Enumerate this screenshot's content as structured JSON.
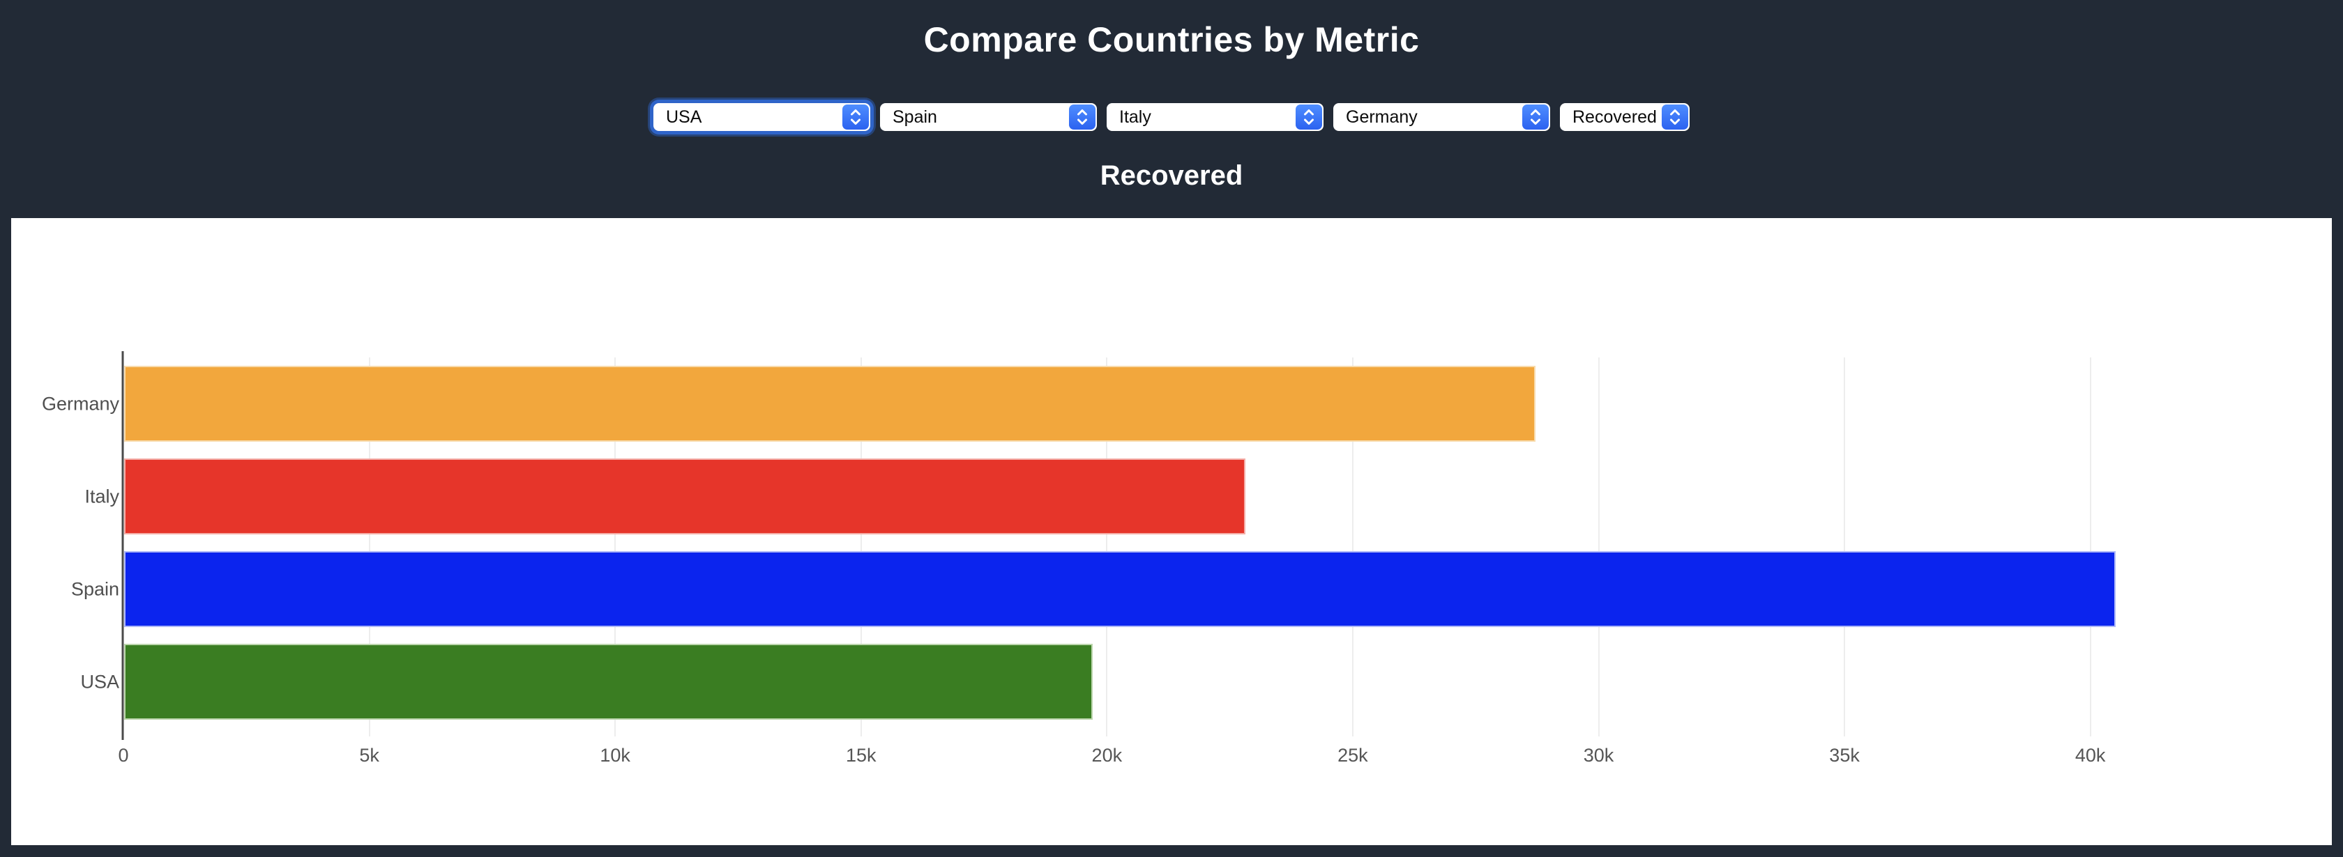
{
  "header": {
    "title": "Compare Countries by Metric",
    "subtitle": "Recovered"
  },
  "controls": {
    "selects": [
      {
        "value": "USA",
        "focused": true
      },
      {
        "value": "Spain",
        "focused": false
      },
      {
        "value": "Italy",
        "focused": false
      },
      {
        "value": "Germany",
        "focused": false
      },
      {
        "value": "Recovered",
        "focused": false
      }
    ]
  },
  "chart_data": {
    "type": "bar",
    "orientation": "horizontal",
    "title": "Recovered",
    "categories": [
      "Germany",
      "Italy",
      "Spain",
      "USA"
    ],
    "values": [
      28700,
      22800,
      40500,
      19700
    ],
    "bar_colors": [
      "#F2A73D",
      "#E6352A",
      "#0B24EE",
      "#3A7D22"
    ],
    "bar_border_colors": [
      "#F8DCAE",
      "#F4ADA7",
      "#AEB8F8",
      "#BCD6AD"
    ],
    "x_ticks": [
      {
        "label": "0",
        "value": 0
      },
      {
        "label": "5k",
        "value": 5000
      },
      {
        "label": "10k",
        "value": 10000
      },
      {
        "label": "15k",
        "value": 15000
      },
      {
        "label": "20k",
        "value": 20000
      },
      {
        "label": "25k",
        "value": 25000
      },
      {
        "label": "30k",
        "value": 30000
      },
      {
        "label": "35k",
        "value": 35000
      },
      {
        "label": "40k",
        "value": 40000
      }
    ],
    "xlim": [
      0,
      44500
    ],
    "ylabel": "",
    "xlabel": "",
    "grid": "vertical-only",
    "legend": "none",
    "gridline_color": "#EDEDED",
    "axis_line_color": "#4A4A4A",
    "tick_label_color": "#555555",
    "plot_background": "#FFFFFF"
  },
  "theme": {
    "page_background": "#222A36",
    "card_background": "#FFFFFF",
    "title_color": "#FFFFFF",
    "select_background": "#FFFFFF",
    "select_text_color": "#0B0B0B",
    "select_accent_top": "#4F8EFF",
    "select_accent_bottom": "#2C62F0",
    "focus_ring_color": "#2F64C9"
  }
}
